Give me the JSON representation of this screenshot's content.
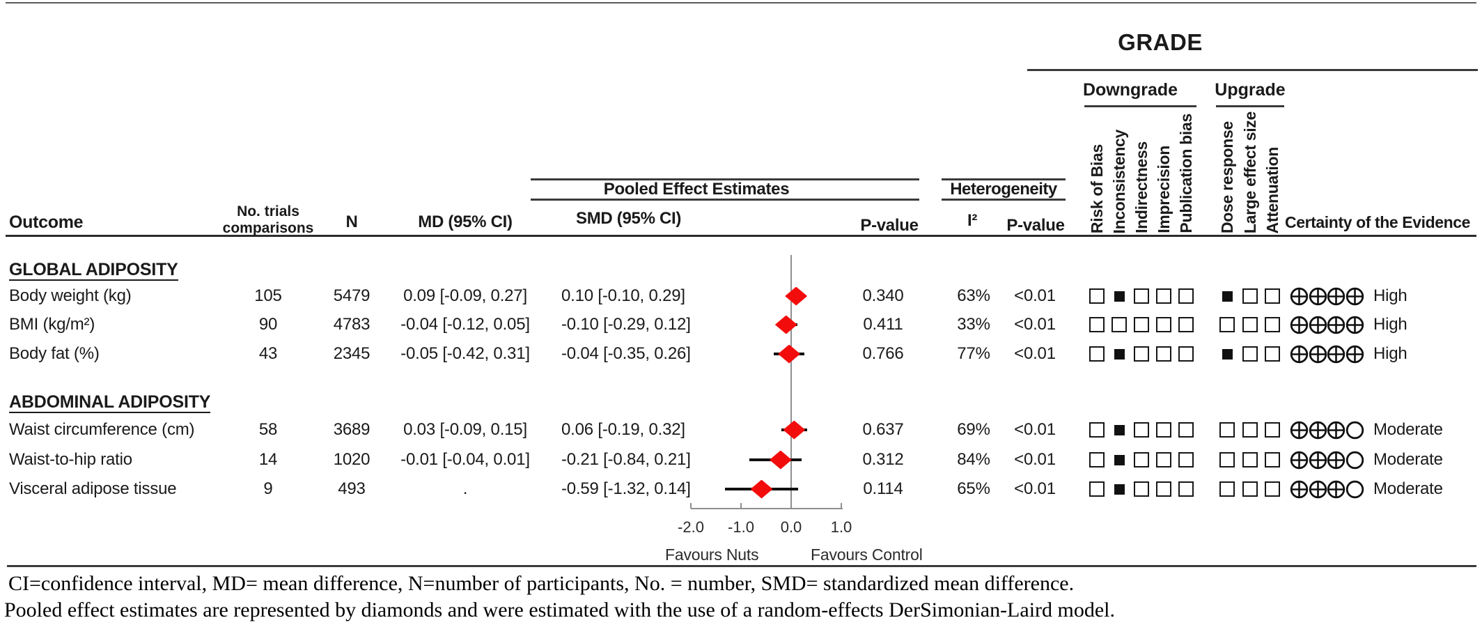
{
  "grade": {
    "title": "GRADE",
    "downgrade_label": "Downgrade",
    "upgrade_label": "Upgrade",
    "downgrade_cols": [
      "Risk of Bias",
      "Inconsistency",
      "Indirectness",
      "Imprecision",
      "Publication bias"
    ],
    "upgrade_cols": [
      "Dose response",
      "Large effect size",
      "Attenuation"
    ],
    "certainty_header": "Certainty of the Evidence"
  },
  "columns": {
    "outcome": "Outcome",
    "trials_line1": "No. trials",
    "trials_line2": "comparisons",
    "n": "N",
    "md": "MD (95% CI)",
    "pooled_group": "Pooled Effect Estimates",
    "smd": "SMD (95% CI)",
    "pvalue": "P-value",
    "het_group": "Heterogeneity",
    "i2": "I²",
    "het_pvalue": "P-value"
  },
  "sections": [
    {
      "heading": "GLOBAL ADIPOSITY",
      "rows": [
        {
          "outcome": "Body weight (kg)",
          "trials": "105",
          "n": "5479",
          "md": "0.09 [-0.09, 0.27]",
          "smd": "0.10 [-0.10, 0.29]",
          "pvalue": "0.340",
          "i2": "63%",
          "het_p": "<0.01",
          "downgrade_filled": [
            false,
            true,
            false,
            false,
            false
          ],
          "upgrade_filled": [
            true,
            false,
            false
          ],
          "certainty_icons": [
            "plus",
            "plus",
            "plus",
            "plus"
          ],
          "certainty": "High"
        },
        {
          "outcome": "BMI (kg/m²)",
          "trials": "90",
          "n": "4783",
          "md": "-0.04 [-0.12, 0.05]",
          "smd": "-0.10 [-0.29, 0.12]",
          "pvalue": "0.411",
          "i2": "33%",
          "het_p": "<0.01",
          "downgrade_filled": [
            false,
            false,
            false,
            false,
            false
          ],
          "upgrade_filled": [
            false,
            false,
            false
          ],
          "certainty_icons": [
            "plus",
            "plus",
            "plus",
            "plus"
          ],
          "certainty": "High"
        },
        {
          "outcome": "Body fat (%)",
          "trials": "43",
          "n": "2345",
          "md": "-0.05 [-0.42, 0.31]",
          "smd": "-0.04 [-0.35, 0.26]",
          "pvalue": "0.766",
          "i2": "77%",
          "het_p": "<0.01",
          "downgrade_filled": [
            false,
            true,
            false,
            false,
            false
          ],
          "upgrade_filled": [
            true,
            false,
            false
          ],
          "certainty_icons": [
            "plus",
            "plus",
            "plus",
            "plus"
          ],
          "certainty": "High"
        }
      ]
    },
    {
      "heading": "ABDOMINAL ADIPOSITY",
      "rows": [
        {
          "outcome": "Waist circumference (cm)",
          "trials": "58",
          "n": "3689",
          "md": "0.03 [-0.09, 0.15]",
          "smd": "0.06 [-0.19, 0.32]",
          "pvalue": "0.637",
          "i2": "69%",
          "het_p": "<0.01",
          "downgrade_filled": [
            false,
            true,
            false,
            false,
            false
          ],
          "upgrade_filled": [
            false,
            false,
            false
          ],
          "certainty_icons": [
            "plus",
            "plus",
            "plus",
            "open"
          ],
          "certainty": "Moderate"
        },
        {
          "outcome": "Waist-to-hip ratio",
          "trials": "14",
          "n": "1020",
          "md": "-0.01 [-0.04, 0.01]",
          "smd": "-0.21 [-0.84, 0.21]",
          "pvalue": "0.312",
          "i2": "84%",
          "het_p": "<0.01",
          "downgrade_filled": [
            false,
            true,
            false,
            false,
            false
          ],
          "upgrade_filled": [
            false,
            false,
            false
          ],
          "certainty_icons": [
            "plus",
            "plus",
            "plus",
            "open"
          ],
          "certainty": "Moderate"
        },
        {
          "outcome": "Visceral adipose tissue",
          "trials": "9",
          "n": "493",
          "md": ".",
          "smd": "-0.59 [-1.32, 0.14]",
          "pvalue": "0.114",
          "i2": "65%",
          "het_p": "<0.01",
          "downgrade_filled": [
            false,
            true,
            false,
            false,
            false
          ],
          "upgrade_filled": [
            false,
            false,
            false
          ],
          "certainty_icons": [
            "plus",
            "plus",
            "plus",
            "open"
          ],
          "certainty": "Moderate"
        }
      ]
    }
  ],
  "chart_data": {
    "type": "scatter",
    "subtype": "forest-plot",
    "x_ticks": [
      -2.0,
      -1.0,
      0.0,
      1.0
    ],
    "x_tick_labels": [
      "-2.0",
      "-1.0",
      "0.0",
      "1.0"
    ],
    "x_range": [
      -2.0,
      1.0
    ],
    "zero_line": 0.0,
    "label_left": "Favours Nuts",
    "label_right": "Favours Control",
    "marker": "diamond",
    "marker_color": "#f20c0c",
    "axis_color": "#8e8e8e",
    "points": [
      {
        "outcome": "Body weight (kg)",
        "smd": 0.1,
        "ci": [
          -0.1,
          0.29
        ]
      },
      {
        "outcome": "BMI (kg/m²)",
        "smd": -0.1,
        "ci": [
          -0.29,
          0.12
        ]
      },
      {
        "outcome": "Body fat (%)",
        "smd": -0.04,
        "ci": [
          -0.35,
          0.26
        ]
      },
      {
        "outcome": "Waist circumference (cm)",
        "smd": 0.06,
        "ci": [
          -0.19,
          0.32
        ]
      },
      {
        "outcome": "Waist-to-hip ratio",
        "smd": -0.21,
        "ci": [
          -0.84,
          0.21
        ]
      },
      {
        "outcome": "Visceral adipose tissue",
        "smd": -0.59,
        "ci": [
          -1.32,
          0.14
        ]
      }
    ]
  },
  "footnotes": [
    "CI=confidence interval, MD= mean difference, N=number of participants, No. = number, SMD= standardized mean difference.",
    "Pooled effect estimates are represented by diamonds and were estimated with the use of a random-effects DerSimonian-Laird model."
  ]
}
